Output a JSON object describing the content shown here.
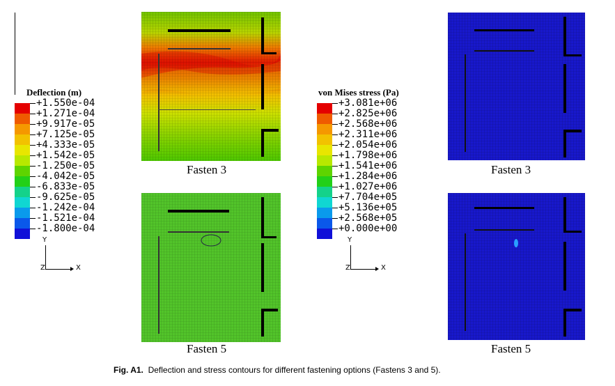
{
  "deflection_legend": {
    "title": "Deflection (m)",
    "labels": [
      "+1.550e-04",
      "+1.271e-04",
      "+9.917e-05",
      "+7.125e-05",
      "+4.333e-05",
      "+1.542e-05",
      "-1.250e-05",
      "-4.042e-05",
      "-6.833e-05",
      "-9.625e-05",
      "-1.242e-04",
      "-1.521e-04",
      "-1.800e-04"
    ],
    "colors": [
      "#e40000",
      "#ef5a00",
      "#f59800",
      "#f2c200",
      "#e8e600",
      "#b8e800",
      "#5ed400",
      "#22d018",
      "#14d28a",
      "#10d6d2",
      "#0a9aec",
      "#0a58ea",
      "#1010d8"
    ]
  },
  "stress_legend": {
    "title": "von Mises stress (Pa)",
    "labels": [
      "+3.081e+06",
      "+2.825e+06",
      "+2.568e+06",
      "+2.311e+06",
      "+2.054e+06",
      "+1.798e+06",
      "+1.541e+06",
      "+1.284e+06",
      "+1.027e+06",
      "+7.704e+05",
      "+5.136e+05",
      "+2.568e+05",
      "+0.000e+00"
    ],
    "colors": [
      "#e40000",
      "#ef5a00",
      "#f59800",
      "#f2c200",
      "#e8e600",
      "#b8e800",
      "#5ed400",
      "#22d018",
      "#14d28a",
      "#10d6d2",
      "#0a9aec",
      "#0a58ea",
      "#1010d8"
    ]
  },
  "axes_triad": {
    "y": "Y",
    "z": "Z",
    "x": "X"
  },
  "panels": {
    "deflection_fasten3": {
      "caption": "Fasten 3"
    },
    "deflection_fasten5": {
      "caption": "Fasten 5"
    },
    "stress_fasten3": {
      "caption": "Fasten 3"
    },
    "stress_fasten5": {
      "caption": "Fasten 5"
    }
  },
  "figure_caption": {
    "label": "Fig. A1.",
    "text": "Deflection and stress contours for different fastening options (Fastens 3 and 5)."
  }
}
